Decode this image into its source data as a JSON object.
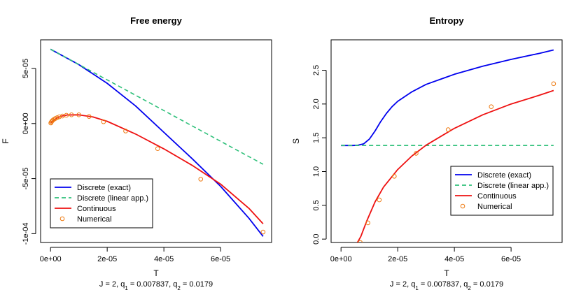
{
  "colors": {
    "discrete_exact": "#0000ee",
    "discrete_linear": "#2fc07a",
    "continuous": "#ee1111",
    "numerical": "#ee7a11"
  },
  "chart_data": [
    {
      "type": "line",
      "title": "Free energy",
      "xlabel": "T",
      "ylabel": "F",
      "subtitle": {
        "prefix": "J = 2, q",
        "s1": "1",
        "mid": " = 0.007837, q",
        "s2": "2",
        "suffix": " = 0.0179"
      },
      "xlim": [
        -3.5e-06,
        7.8e-05
      ],
      "ylim": [
        -0.000108,
        7.6e-05
      ],
      "xticks": [
        0,
        2e-05,
        4e-05,
        6e-05
      ],
      "xtick_labels": [
        "0e+00",
        "2e-05",
        "4e-05",
        "6e-05"
      ],
      "yticks": [
        -0.0001,
        -5e-05,
        0,
        5e-05
      ],
      "ytick_labels": [
        "-1e-04",
        "-5e-05",
        "0e+00",
        "5e-05"
      ],
      "legend_position": "bottom-left",
      "legend": [
        "Discrete (exact)",
        "Discrete (linear app.)",
        "Continuous",
        "Numerical"
      ],
      "series": [
        {
          "name": "Discrete (exact)",
          "style": "line",
          "color_key": "discrete_exact",
          "x": [
            0,
            1e-05,
            2e-05,
            3e-05,
            4e-05,
            5e-05,
            6e-05,
            7e-05,
            7.5e-05
          ],
          "y": [
            6.75e-05,
            5.35e-05,
            3.65e-05,
            1.6e-05,
            -8e-06,
            -3.2e-05,
            -5.7e-05,
            -8.6e-05,
            -0.0001025
          ]
        },
        {
          "name": "Discrete (linear app.)",
          "style": "dashed",
          "color_key": "discrete_linear",
          "x": [
            0,
            7.5e-05
          ],
          "y": [
            6.75e-05,
            -3.7e-05
          ]
        },
        {
          "name": "Continuous",
          "style": "line",
          "color_key": "continuous",
          "x": [
            0,
            2e-06,
            4e-06,
            6e-06,
            1e-05,
            1.5e-05,
            2e-05,
            3e-05,
            4e-05,
            5e-05,
            6e-05,
            7e-05,
            7.5e-05
          ],
          "y": [
            5e-07,
            4.8e-06,
            6.8e-06,
            7.8e-06,
            7.9e-06,
            6e-06,
            2e-06,
            -9.5e-06,
            -2.3e-05,
            -3.8e-05,
            -5.5e-05,
            -7.7e-05,
            -9.1e-05
          ]
        },
        {
          "name": "Numerical",
          "style": "points",
          "color_key": "numerical",
          "x": [
            1e-07,
            3e-07,
            5e-07,
            8e-07,
            1.2e-06,
            1.7e-06,
            2.3e-06,
            3.1e-06,
            4.2e-06,
            5.6e-06,
            7.4e-06,
            1e-05,
            1.36e-05,
            1.87e-05,
            2.65e-05,
            3.78e-05,
            5.3e-05,
            7.5e-05
          ],
          "y": [
            5e-07,
            1.4e-06,
            2.2e-06,
            3e-06,
            3.8e-06,
            4.6e-06,
            5.3e-06,
            6.1e-06,
            6.8e-06,
            7.5e-06,
            7.9e-06,
            7.9e-06,
            6.4e-06,
            1.6e-06,
            -6.8e-06,
            -2.28e-05,
            -5.05e-05,
            -9.85e-05
          ]
        }
      ]
    },
    {
      "type": "line",
      "title": "Entropy",
      "xlabel": "T",
      "ylabel": "S",
      "subtitle": {
        "prefix": "J = 2, q",
        "s1": "1",
        "mid": " = 0.007837, q",
        "s2": "2",
        "suffix": " = 0.0179"
      },
      "xlim": [
        -3.5e-06,
        7.8e-05
      ],
      "ylim": [
        -0.05,
        2.95
      ],
      "xticks": [
        0,
        2e-05,
        4e-05,
        6e-05
      ],
      "xtick_labels": [
        "0e+00",
        "2e-05",
        "4e-05",
        "6e-05"
      ],
      "yticks": [
        0,
        0.5,
        1,
        1.5,
        2,
        2.5
      ],
      "ytick_labels": [
        "0.0",
        "0.5",
        "1.0",
        "1.5",
        "2.0",
        "2.5"
      ],
      "legend_position": "bottom-right",
      "legend": [
        "Discrete (exact)",
        "Discrete (linear app.)",
        "Continuous",
        "Numerical"
      ],
      "series": [
        {
          "name": "Discrete (exact)",
          "style": "line",
          "color_key": "discrete_exact",
          "x": [
            0,
            4e-06,
            6e-06,
            8e-06,
            1e-05,
            1.2e-05,
            1.4e-05,
            1.6e-05,
            1.8e-05,
            2e-05,
            2.5e-05,
            3e-05,
            4e-05,
            5e-05,
            6e-05,
            7e-05,
            7.5e-05
          ],
          "y": [
            1.386,
            1.386,
            1.39,
            1.41,
            1.48,
            1.6,
            1.74,
            1.86,
            1.96,
            2.04,
            2.18,
            2.29,
            2.44,
            2.56,
            2.66,
            2.75,
            2.8
          ]
        },
        {
          "name": "Discrete (linear app.)",
          "style": "dashed",
          "color_key": "discrete_linear",
          "x": [
            0,
            7.5e-05
          ],
          "y": [
            1.386,
            1.386
          ]
        },
        {
          "name": "Continuous",
          "style": "line",
          "color_key": "continuous",
          "x": [
            5.8e-06,
            7e-06,
            9e-06,
            1.2e-05,
            1.5e-05,
            2e-05,
            2.5e-05,
            3e-05,
            4e-05,
            5e-05,
            6e-05,
            7e-05,
            7.5e-05
          ],
          "y": [
            -0.05,
            0.04,
            0.26,
            0.55,
            0.77,
            1.03,
            1.23,
            1.39,
            1.64,
            1.84,
            2.0,
            2.13,
            2.2
          ]
        },
        {
          "name": "Numerical",
          "style": "points",
          "color_key": "numerical",
          "x": [
            6.8e-06,
            9.5e-06,
            1.35e-05,
            1.88e-05,
            2.65e-05,
            3.78e-05,
            5.3e-05,
            7.5e-05
          ],
          "y": [
            -0.05,
            0.24,
            0.58,
            0.93,
            1.27,
            1.62,
            1.96,
            2.3
          ]
        }
      ]
    }
  ]
}
